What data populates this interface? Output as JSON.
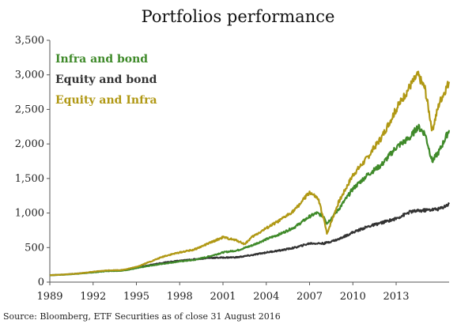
{
  "chart_data": {
    "type": "line",
    "title": "Portfolios performance",
    "source": "Source: Bloomberg, ETF Securities as of close 31 August 2016",
    "xlabel": "",
    "ylabel": "",
    "xlim": [
      1989,
      2016.67
    ],
    "ylim": [
      0,
      3500
    ],
    "xticks": [
      1989,
      1992,
      1995,
      1998,
      2001,
      2004,
      2007,
      2010,
      2013
    ],
    "xtick_labels": [
      "1989",
      "1992",
      "1995",
      "1998",
      "2001",
      "2004",
      "2007",
      "2010",
      "2013"
    ],
    "yticks": [
      0,
      500,
      1000,
      1500,
      2000,
      2500,
      3000,
      3500
    ],
    "ytick_labels": [
      "0",
      "500",
      "1,000",
      "1,500",
      "2,000",
      "2,500",
      "3,000",
      "3,500"
    ],
    "grid": false,
    "legend": "top-left",
    "series": [
      {
        "name": "Infra and bond",
        "color": "#3f8a2a",
        "x": [
          1989,
          1990,
          1991,
          1992,
          1993,
          1994,
          1995,
          1996,
          1997,
          1998,
          1999,
          2000,
          2001,
          2002,
          2003,
          2004,
          2005,
          2006,
          2007,
          2007.5,
          2008,
          2008.2,
          2009,
          2010,
          2011,
          2012,
          2013,
          2014,
          2014.5,
          2015,
          2015.5,
          2016,
          2016.67
        ],
        "y": [
          100,
          108,
          122,
          140,
          160,
          165,
          200,
          240,
          270,
          300,
          320,
          370,
          430,
          460,
          530,
          620,
          700,
          800,
          950,
          1000,
          950,
          850,
          1050,
          1350,
          1550,
          1700,
          1950,
          2100,
          2250,
          2150,
          1750,
          1900,
          2200
        ]
      },
      {
        "name": "Equity and bond",
        "color": "#333333",
        "x": [
          1989,
          1990,
          1991,
          1992,
          1993,
          1994,
          1995,
          1996,
          1997,
          1998,
          1999,
          2000,
          2001,
          2002,
          2003,
          2004,
          2005,
          2006,
          2007,
          2008,
          2009,
          2010,
          2011,
          2012,
          2013,
          2014,
          2015,
          2016,
          2016.67
        ],
        "y": [
          100,
          110,
          125,
          145,
          165,
          170,
          210,
          250,
          285,
          310,
          330,
          350,
          355,
          360,
          390,
          430,
          460,
          500,
          560,
          560,
          620,
          720,
          800,
          860,
          920,
          1020,
          1040,
          1060,
          1130
        ]
      },
      {
        "name": "Equity and Infra",
        "color": "#b09814",
        "x": [
          1989,
          1990,
          1991,
          1992,
          1993,
          1994,
          1995,
          1996,
          1997,
          1998,
          1999,
          2000,
          2001,
          2002,
          2002.5,
          2003,
          2004,
          2005,
          2006,
          2007,
          2007.6,
          2008,
          2008.2,
          2009,
          2010,
          2011,
          2012,
          2013,
          2014,
          2014.5,
          2015,
          2015.5,
          2016,
          2016.67
        ],
        "y": [
          100,
          110,
          125,
          150,
          170,
          175,
          220,
          300,
          380,
          430,
          470,
          560,
          650,
          600,
          550,
          650,
          780,
          900,
          1050,
          1300,
          1200,
          900,
          700,
          1150,
          1550,
          1800,
          2100,
          2500,
          2850,
          3000,
          2800,
          2200,
          2600,
          2900
        ]
      }
    ]
  }
}
